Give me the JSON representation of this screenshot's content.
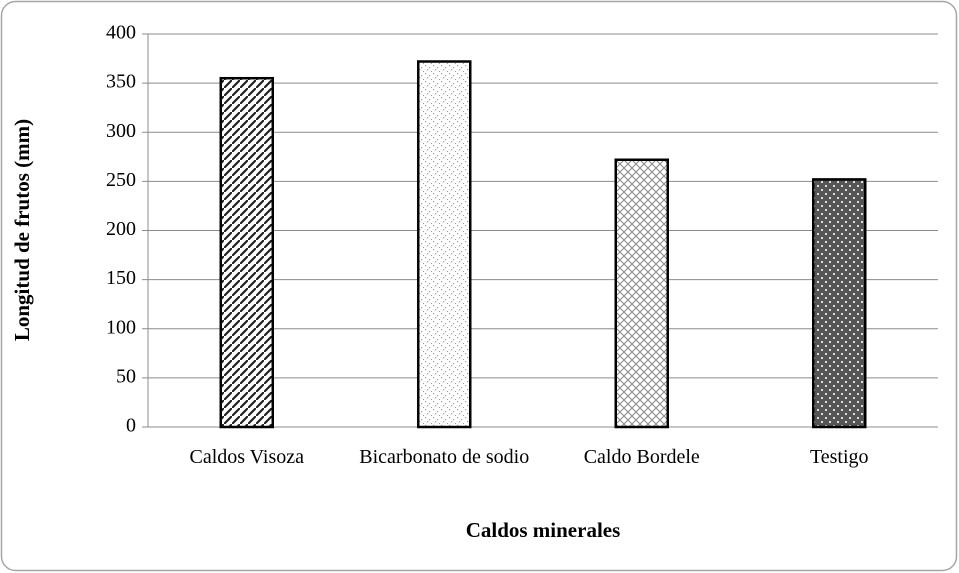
{
  "chart_data": {
    "type": "bar",
    "x_label": "Caldos minerales",
    "y_label": "Longitud de frutos (mm)",
    "categories": [
      "Caldos Visoza",
      "Bicarbonato de sodio",
      "Caldo Bordele",
      "Testigo"
    ],
    "values": [
      355,
      372,
      272,
      252
    ],
    "colors": [
      "#222222",
      "#9a9a9a",
      "#8a8a8a",
      "#555555"
    ],
    "ylim": [
      0,
      400
    ],
    "yticks": [
      0,
      50,
      100,
      150,
      200,
      250,
      300,
      350,
      400
    ],
    "grid": true
  }
}
